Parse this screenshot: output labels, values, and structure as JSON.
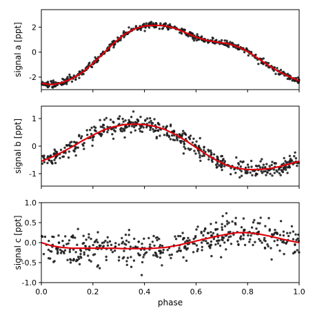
{
  "colors": {
    "points": "#1a1a1a",
    "model": "#e0000b",
    "axes": "#000000",
    "background": "#ffffff"
  },
  "chart_data": [
    {
      "type": "scatter",
      "xlabel": "",
      "ylabel": "signal a [ppt]",
      "xlim": [
        0.0,
        1.0
      ],
      "ylim": [
        -3.0,
        3.4
      ],
      "yticks": [
        "-2",
        "0",
        "2"
      ],
      "ytick_values": [
        -2,
        0,
        2
      ],
      "xtick_values": [
        0.0,
        0.2,
        0.4,
        0.6,
        0.8,
        1.0
      ],
      "show_xtick_labels": false,
      "grid": false,
      "scatter_n": 520,
      "scatter_noise": 0.12,
      "model": {
        "x": [
          0.0,
          0.04,
          0.08,
          0.12,
          0.16,
          0.2,
          0.24,
          0.28,
          0.32,
          0.36,
          0.4,
          0.44,
          0.48,
          0.52,
          0.56,
          0.6,
          0.64,
          0.68,
          0.72,
          0.76,
          0.8,
          0.84,
          0.88,
          0.92,
          0.96,
          1.0
        ],
        "y": [
          -2.5,
          -2.6,
          -2.45,
          -2.1,
          -1.6,
          -0.9,
          -0.1,
          0.7,
          1.4,
          1.85,
          2.1,
          2.15,
          2.1,
          1.9,
          1.55,
          1.2,
          0.95,
          0.8,
          0.7,
          0.45,
          0.05,
          -0.5,
          -1.05,
          -1.55,
          -1.95,
          -2.3
        ]
      }
    },
    {
      "type": "scatter",
      "xlabel": "",
      "ylabel": "signal b [ppt]",
      "xlim": [
        0.0,
        1.0
      ],
      "ylim": [
        -1.45,
        1.45
      ],
      "yticks": [
        "-1",
        "0",
        "1"
      ],
      "ytick_values": [
        -1,
        0,
        1
      ],
      "xtick_values": [
        0.0,
        0.2,
        0.4,
        0.6,
        0.8,
        1.0
      ],
      "show_xtick_labels": false,
      "grid": false,
      "scatter_n": 480,
      "scatter_noise": 0.17,
      "model": {
        "x": [
          0.0,
          0.04,
          0.08,
          0.12,
          0.16,
          0.2,
          0.24,
          0.28,
          0.32,
          0.36,
          0.4,
          0.44,
          0.48,
          0.52,
          0.56,
          0.6,
          0.64,
          0.68,
          0.72,
          0.76,
          0.8,
          0.84,
          0.88,
          0.92,
          0.96,
          1.0
        ],
        "y": [
          -0.55,
          -0.4,
          -0.22,
          -0.02,
          0.2,
          0.4,
          0.58,
          0.7,
          0.78,
          0.8,
          0.78,
          0.72,
          0.6,
          0.42,
          0.2,
          -0.05,
          -0.3,
          -0.52,
          -0.7,
          -0.8,
          -0.85,
          -0.85,
          -0.82,
          -0.75,
          -0.65,
          -0.55
        ]
      }
    },
    {
      "type": "scatter",
      "xlabel": "phase",
      "ylabel": "signal c [ppt]",
      "xlim": [
        0.0,
        1.0
      ],
      "ylim": [
        -1.0,
        1.0
      ],
      "yticks": [
        "-1.0",
        "-0.5",
        "0.0",
        "0.5",
        "1.0"
      ],
      "ytick_values": [
        -1.0,
        -0.5,
        0.0,
        0.5,
        1.0
      ],
      "xticks": [
        "0.0",
        "0.2",
        "0.4",
        "0.6",
        "0.8",
        "1.0"
      ],
      "xtick_values": [
        0.0,
        0.2,
        0.4,
        0.6,
        0.8,
        1.0
      ],
      "show_xtick_labels": true,
      "grid": false,
      "scatter_n": 430,
      "scatter_noise": 0.2,
      "model": {
        "x": [
          0.0,
          0.04,
          0.08,
          0.12,
          0.16,
          0.2,
          0.24,
          0.28,
          0.32,
          0.36,
          0.4,
          0.44,
          0.48,
          0.52,
          0.56,
          0.6,
          0.64,
          0.68,
          0.72,
          0.76,
          0.8,
          0.84,
          0.88,
          0.92,
          0.96,
          1.0
        ],
        "y": [
          0.0,
          -0.08,
          -0.12,
          -0.14,
          -0.14,
          -0.14,
          -0.14,
          -0.14,
          -0.15,
          -0.15,
          -0.15,
          -0.14,
          -0.12,
          -0.08,
          -0.02,
          0.04,
          0.1,
          0.16,
          0.21,
          0.25,
          0.25,
          0.22,
          0.17,
          0.11,
          0.05,
          0.0
        ]
      }
    }
  ]
}
